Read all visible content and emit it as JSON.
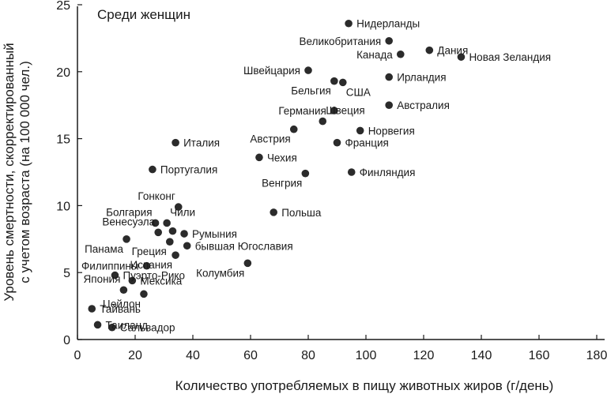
{
  "chart_data": {
    "type": "scatter",
    "title": "Среди женщин",
    "xlabel": "Количество употребляемых в пищу животных жиров (г/день)",
    "ylabel_line1": "Уровень смертности, скорректированный",
    "ylabel_line2": "с учетом возраста (на 100 000 чел.)",
    "xlim": [
      0,
      180
    ],
    "ylim": [
      0,
      25
    ],
    "xticks": [
      "0",
      "20",
      "40",
      "60",
      "80",
      "100",
      "120",
      "140",
      "160",
      "180"
    ],
    "yticks": [
      "0",
      "5",
      "10",
      "15",
      "20",
      "25"
    ],
    "grid": false,
    "points": [
      {
        "label": "Нидерланды",
        "x": 94,
        "y": 23.6
      },
      {
        "label": "Великобритания",
        "x": 108,
        "y": 22.3
      },
      {
        "label": "Дания",
        "x": 122,
        "y": 21.6
      },
      {
        "label": "Канада",
        "x": 112,
        "y": 21.3
      },
      {
        "label": "Новая Зеландия",
        "x": 133,
        "y": 21.1
      },
      {
        "label": "Швейцария",
        "x": 80,
        "y": 20.1
      },
      {
        "label": "Ирландия",
        "x": 108,
        "y": 19.6
      },
      {
        "label": "Бельгия",
        "x": 89,
        "y": 19.3
      },
      {
        "label": "США",
        "x": 92,
        "y": 19.2
      },
      {
        "label": "Австралия",
        "x": 108,
        "y": 17.5
      },
      {
        "label": "Германия",
        "x": 89,
        "y": 17.1
      },
      {
        "label": "Швеция",
        "x": 85,
        "y": 16.3
      },
      {
        "label": "Норвегия",
        "x": 98,
        "y": 15.6
      },
      {
        "label": "Австрия",
        "x": 75,
        "y": 15.7
      },
      {
        "label": "Франция",
        "x": 90,
        "y": 14.7
      },
      {
        "label": "Италия",
        "x": 34,
        "y": 14.7
      },
      {
        "label": "Чехия",
        "x": 63,
        "y": 13.6
      },
      {
        "label": "Португалия",
        "x": 26,
        "y": 12.7
      },
      {
        "label": "Финляндия",
        "x": 95,
        "y": 12.5
      },
      {
        "label": "Венгрия",
        "x": 79,
        "y": 12.4
      },
      {
        "label": "Гонконг",
        "x": 35,
        "y": 9.9
      },
      {
        "label": "Польша",
        "x": 68,
        "y": 9.5
      },
      {
        "label": "Болгария",
        "x": 27,
        "y": 8.7
      },
      {
        "label": "Чили",
        "x": 31,
        "y": 8.7
      },
      {
        "label": "Венесуэла",
        "x": 28,
        "y": 8.0
      },
      {
        "label": "",
        "x": 33,
        "y": 8.1
      },
      {
        "label": "Румыния",
        "x": 37,
        "y": 7.9
      },
      {
        "label": "Панама",
        "x": 17,
        "y": 7.5
      },
      {
        "label": "Греция",
        "x": 32,
        "y": 7.3
      },
      {
        "label": "бывшая Югославия",
        "x": 38,
        "y": 7.0
      },
      {
        "label": "Испания",
        "x": 34,
        "y": 6.3
      },
      {
        "label": "Филиппины",
        "x": 24,
        "y": 5.5
      },
      {
        "label": "Колумбия",
        "x": 59,
        "y": 5.7
      },
      {
        "label": "Пуэрто-Рико",
        "x": 13,
        "y": 4.8
      },
      {
        "label": "Мексика",
        "x": 19,
        "y": 4.4
      },
      {
        "label": "Япония",
        "x": 16,
        "y": 3.7
      },
      {
        "label": "Цейлон",
        "x": 23,
        "y": 3.4
      },
      {
        "label": "Тайвань",
        "x": 5,
        "y": 2.3
      },
      {
        "label": "Таиланд",
        "x": 7,
        "y": 1.1
      },
      {
        "label": "Сальвадор",
        "x": 12,
        "y": 0.9
      }
    ]
  }
}
